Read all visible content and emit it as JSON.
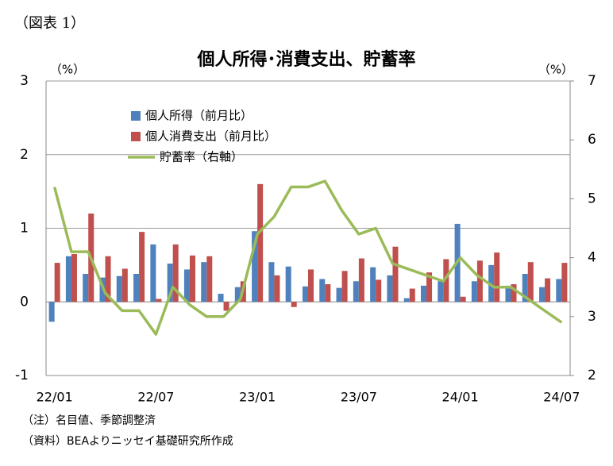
{
  "figure_label": "（図表 1）",
  "notes": [
    "（注）名目値、季節調整済",
    "（資料）BEAよりニッセイ基礎研究所作成"
  ],
  "chart_data": {
    "type": "bar_line",
    "title": "個人所得･消費支出、貯蓄率",
    "y_unit": "（%）",
    "y2_unit": "（%）",
    "categories": [
      "22/01",
      null,
      null,
      null,
      null,
      null,
      "22/07",
      null,
      null,
      null,
      null,
      null,
      "23/01",
      null,
      null,
      null,
      null,
      null,
      "23/07",
      null,
      null,
      null,
      null,
      null,
      "24/01",
      null,
      null,
      null,
      null,
      null,
      "24/07"
    ],
    "series": [
      {
        "name": "個人所得（前月比）",
        "color": "#4f81bd",
        "kind": "bar",
        "values": [
          -0.27,
          0.62,
          0.38,
          0.33,
          0.35,
          0.38,
          0.78,
          0.52,
          0.44,
          0.54,
          0.11,
          0.2,
          0.96,
          0.54,
          0.48,
          0.21,
          0.31,
          0.19,
          0.28,
          0.47,
          0.36,
          0.05,
          0.22,
          0.28,
          1.06,
          0.28,
          0.5,
          0.22,
          0.38,
          0.2,
          0.31
        ]
      },
      {
        "name": "個人消費支出（前月比）",
        "color": "#c0504d",
        "kind": "bar",
        "values": [
          0.53,
          0.65,
          1.2,
          0.62,
          0.45,
          0.95,
          0.04,
          0.78,
          0.63,
          0.62,
          -0.12,
          0.28,
          1.6,
          0.36,
          -0.07,
          0.44,
          0.24,
          0.42,
          0.59,
          0.3,
          0.75,
          0.18,
          0.4,
          0.58,
          0.07,
          0.56,
          0.67,
          0.24,
          0.54,
          0.32,
          0.53
        ]
      },
      {
        "name": "貯蓄率（右軸）",
        "color": "#9bbb59",
        "kind": "line",
        "axis": "y2",
        "values": [
          5.2,
          4.1,
          4.1,
          3.4,
          3.1,
          3.1,
          2.7,
          3.5,
          3.2,
          3.0,
          3.0,
          3.3,
          4.4,
          4.7,
          5.2,
          5.2,
          5.3,
          4.8,
          4.4,
          4.5,
          3.9,
          3.8,
          3.7,
          3.6,
          4.0,
          3.7,
          3.5,
          3.5,
          3.3,
          3.1,
          2.9
        ]
      }
    ],
    "ylim": [
      -1,
      3
    ],
    "yticks": [
      -1,
      0,
      1,
      2,
      3
    ],
    "y2lim": [
      2,
      7
    ],
    "y2ticks": [
      2,
      3,
      4,
      5,
      6,
      7
    ],
    "grid": true
  }
}
